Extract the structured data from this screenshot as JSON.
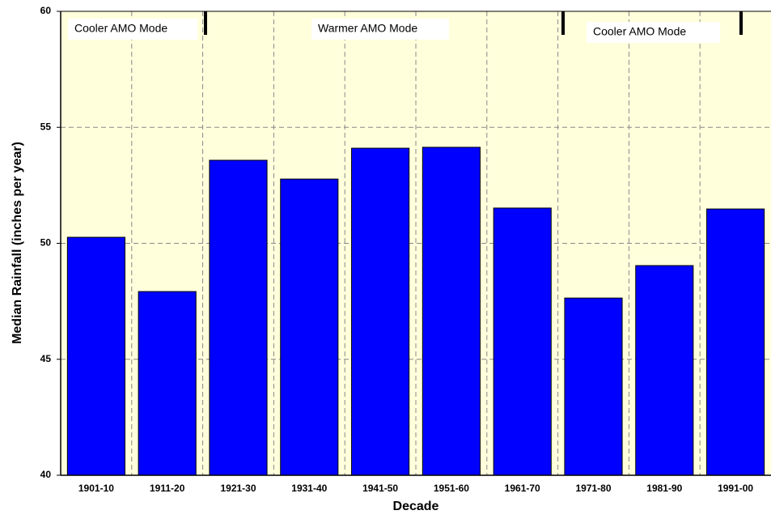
{
  "chart_data": {
    "type": "bar",
    "x_label": "Decade",
    "y_label": "Median Rainfall  (inches per year)",
    "categories": [
      "1901-10",
      "1911-20",
      "1921-30",
      "1931-40",
      "1941-50",
      "1951-60",
      "1961-70",
      "1971-80",
      "1981-90",
      "1991-00"
    ],
    "values": [
      50.26,
      47.92,
      53.58,
      52.77,
      54.1,
      54.14,
      51.52,
      47.64,
      49.04,
      51.48
    ],
    "color": "#0000ff",
    "ylim": [
      40,
      60
    ],
    "yticks": [
      40,
      45,
      50,
      55,
      60
    ],
    "grid": true,
    "annotations": [
      "Cooler AMO Mode",
      "Warmer AMO Mode",
      "Cooler AMO Mode"
    ]
  }
}
